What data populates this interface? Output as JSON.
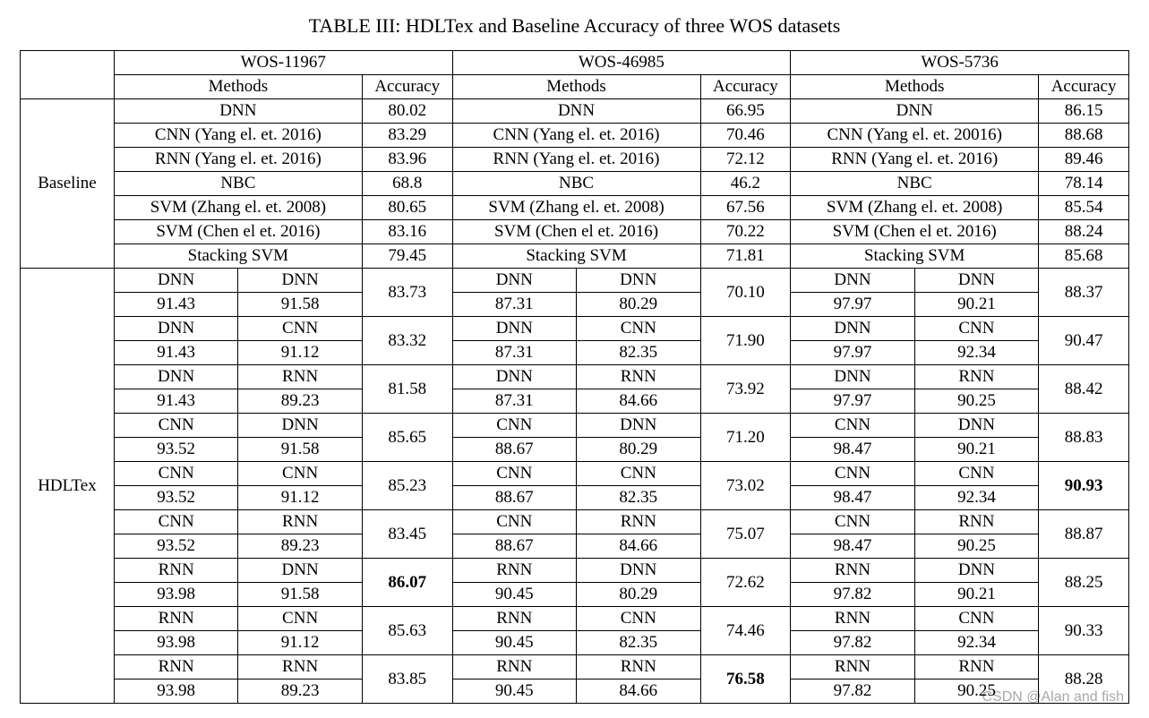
{
  "caption": "TABLE III: HDLTex and Baseline Accuracy of three WOS datasets",
  "datasets": [
    "WOS-11967",
    "WOS-46985",
    "WOS-5736"
  ],
  "header": {
    "methods": "Methods",
    "accuracy": "Accuracy"
  },
  "sections": {
    "baseline": "Baseline",
    "hdltex": "HDLTex"
  },
  "baseline": {
    "rows": [
      {
        "m": [
          "DNN",
          "DNN",
          "DNN"
        ],
        "a": [
          "80.02",
          "66.95",
          "86.15"
        ]
      },
      {
        "m": [
          "CNN (Yang el. et. 2016)",
          "CNN (Yang el. et. 2016)",
          "CNN (Yang el. et. 20016)"
        ],
        "a": [
          "83.29",
          "70.46",
          "88.68"
        ]
      },
      {
        "m": [
          "RNN (Yang el. et. 2016)",
          "RNN (Yang el. et. 2016)",
          "RNN (Yang el. et. 2016)"
        ],
        "a": [
          "83.96",
          "72.12",
          "89.46"
        ]
      },
      {
        "m": [
          "NBC",
          "NBC",
          "NBC"
        ],
        "a": [
          "68.8",
          "46.2",
          "78.14"
        ]
      },
      {
        "m": [
          "SVM (Zhang el. et. 2008)",
          "SVM (Zhang el. et. 2008)",
          "SVM (Zhang el. et. 2008)"
        ],
        "a": [
          "80.65",
          "67.56",
          "85.54"
        ]
      },
      {
        "m": [
          "SVM (Chen el et. 2016)",
          "SVM (Chen el et. 2016)",
          "SVM (Chen el et. 2016)"
        ],
        "a": [
          "83.16",
          "70.22",
          "88.24"
        ]
      },
      {
        "m": [
          "Stacking SVM",
          "Stacking SVM",
          "Stacking SVM"
        ],
        "a": [
          "79.45",
          "71.81",
          "85.68"
        ]
      }
    ]
  },
  "hdltex": {
    "rows": [
      {
        "top": [
          "DNN",
          "DNN",
          "DNN",
          "DNN",
          "DNN",
          "DNN"
        ],
        "bot": [
          "91.43",
          "91.58",
          "87.31",
          "80.29",
          "97.97",
          "90.21"
        ],
        "acc": [
          "83.73",
          "70.10",
          "88.37"
        ],
        "bold": [
          false,
          false,
          false
        ]
      },
      {
        "top": [
          "DNN",
          "CNN",
          "DNN",
          "CNN",
          "DNN",
          "CNN"
        ],
        "bot": [
          "91.43",
          "91.12",
          "87.31",
          "82.35",
          "97.97",
          "92.34"
        ],
        "acc": [
          "83.32",
          "71.90",
          "90.47"
        ],
        "bold": [
          false,
          false,
          false
        ]
      },
      {
        "top": [
          "DNN",
          "RNN",
          "DNN",
          "RNN",
          "DNN",
          "RNN"
        ],
        "bot": [
          "91.43",
          "89.23",
          "87.31",
          "84.66",
          "97.97",
          "90.25"
        ],
        "acc": [
          "81.58",
          "73.92",
          "88.42"
        ],
        "bold": [
          false,
          false,
          false
        ]
      },
      {
        "top": [
          "CNN",
          "DNN",
          "CNN",
          "DNN",
          "CNN",
          "DNN"
        ],
        "bot": [
          "93.52",
          "91.58",
          "88.67",
          "80.29",
          "98.47",
          "90.21"
        ],
        "acc": [
          "85.65",
          "71.20",
          "88.83"
        ],
        "bold": [
          false,
          false,
          false
        ]
      },
      {
        "top": [
          "CNN",
          "CNN",
          "CNN",
          "CNN",
          "CNN",
          "CNN"
        ],
        "bot": [
          "93.52",
          "91.12",
          "88.67",
          "82.35",
          "98.47",
          "92.34"
        ],
        "acc": [
          "85.23",
          "73.02",
          "90.93"
        ],
        "bold": [
          false,
          false,
          true
        ]
      },
      {
        "top": [
          "CNN",
          "RNN",
          "CNN",
          "RNN",
          "CNN",
          "RNN"
        ],
        "bot": [
          "93.52",
          "89.23",
          "88.67",
          "84.66",
          "98.47",
          "90.25"
        ],
        "acc": [
          "83.45",
          "75.07",
          "88.87"
        ],
        "bold": [
          false,
          false,
          false
        ]
      },
      {
        "top": [
          "RNN",
          "DNN",
          "RNN",
          "DNN",
          "RNN",
          "DNN"
        ],
        "bot": [
          "93.98",
          "91.58",
          "90.45",
          "80.29",
          "97.82",
          "90.21"
        ],
        "acc": [
          "86.07",
          "72.62",
          "88.25"
        ],
        "bold": [
          true,
          false,
          false
        ]
      },
      {
        "top": [
          "RNN",
          "CNN",
          "RNN",
          "CNN",
          "RNN",
          "CNN"
        ],
        "bot": [
          "93.98",
          "91.12",
          "90.45",
          "82.35",
          "97.82",
          "92.34"
        ],
        "acc": [
          "85.63",
          "74.46",
          "90.33"
        ],
        "bold": [
          false,
          false,
          false
        ]
      },
      {
        "top": [
          "RNN",
          "RNN",
          "RNN",
          "RNN",
          "RNN",
          "RNN"
        ],
        "bot": [
          "93.98",
          "89.23",
          "90.45",
          "84.66",
          "97.82",
          "90.25"
        ],
        "acc": [
          "83.85",
          "76.58",
          "88.28"
        ],
        "bold": [
          false,
          true,
          false
        ]
      }
    ]
  },
  "watermark": "CSDN @Alan and fish"
}
